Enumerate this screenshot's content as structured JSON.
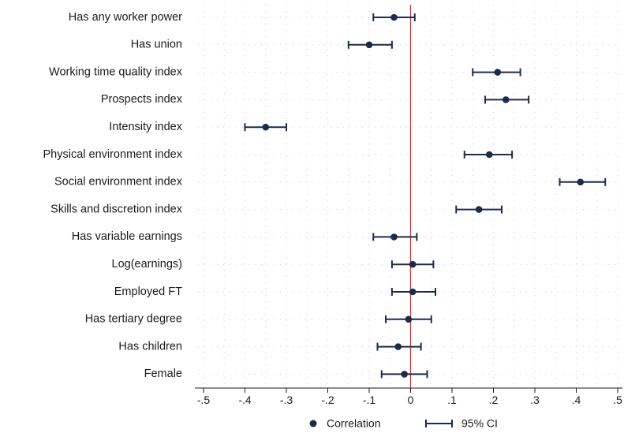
{
  "chart_data": {
    "type": "scatter",
    "orientation": "horizontal",
    "title": "",
    "xlabel": "",
    "ylabel": "",
    "xlim": [
      -0.5,
      0.5
    ],
    "xticks": [
      -0.5,
      -0.4,
      -0.3,
      -0.2,
      -0.1,
      0,
      0.1,
      0.2,
      0.3,
      0.4,
      0.5
    ],
    "xtick_labels": [
      "-.5",
      "-.4",
      "-.3",
      "-.2",
      "-.1",
      "0",
      ".1",
      ".2",
      ".3",
      ".4",
      ".5"
    ],
    "reference_line": {
      "x": 0,
      "color": "#e0282a"
    },
    "grid": "dotted",
    "legend": {
      "position": "bottom",
      "entries": [
        "Correlation",
        "95% CI"
      ]
    },
    "series_color": "#1c2b4a",
    "categories": [
      "Has any worker power",
      "Has union",
      "Working time quality index",
      "Prospects index",
      "Intensity index",
      "Physical environment index",
      "Social environment index",
      "Skills and discretion index",
      "Has variable earnings",
      "Log(earnings)",
      "Employed FT",
      "Has tertiary degree",
      "Has children",
      "Female"
    ],
    "series": [
      {
        "name": "Correlation",
        "values": [
          -0.04,
          -0.1,
          0.21,
          0.23,
          -0.35,
          0.19,
          0.41,
          0.165,
          -0.04,
          0.005,
          0.005,
          -0.005,
          -0.03,
          -0.015
        ]
      },
      {
        "name": "95% CI",
        "lower": [
          -0.09,
          -0.15,
          0.15,
          0.18,
          -0.4,
          0.13,
          0.36,
          0.11,
          -0.09,
          -0.045,
          -0.045,
          -0.06,
          -0.08,
          -0.07
        ],
        "upper": [
          0.01,
          -0.045,
          0.265,
          0.285,
          -0.3,
          0.245,
          0.47,
          0.22,
          0.015,
          0.055,
          0.06,
          0.05,
          0.025,
          0.04
        ]
      }
    ]
  }
}
